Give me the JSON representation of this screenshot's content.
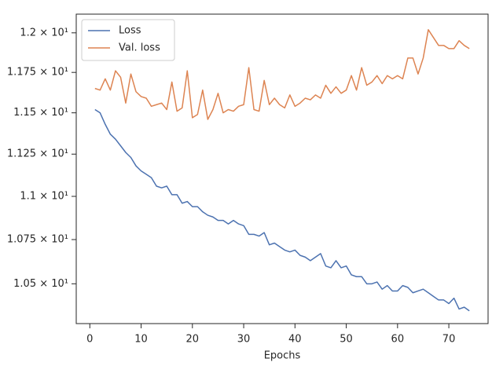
{
  "chart_data": {
    "type": "line",
    "xlabel": "Epochs",
    "x": [
      1,
      2,
      3,
      4,
      5,
      6,
      7,
      8,
      9,
      10,
      11,
      12,
      13,
      14,
      15,
      16,
      17,
      18,
      19,
      20,
      21,
      22,
      23,
      24,
      25,
      26,
      27,
      28,
      29,
      30,
      31,
      32,
      33,
      34,
      35,
      36,
      37,
      38,
      39,
      40,
      41,
      42,
      43,
      44,
      45,
      46,
      47,
      48,
      49,
      50,
      51,
      52,
      53,
      54,
      55,
      56,
      57,
      58,
      59,
      60,
      61,
      62,
      63,
      64,
      65,
      66,
      67,
      68,
      69,
      70,
      71,
      72,
      73,
      74
    ],
    "series": [
      {
        "name": "Loss",
        "color": "#4c72b0",
        "values": [
          11.52,
          11.5,
          11.43,
          11.37,
          11.34,
          11.3,
          11.26,
          11.23,
          11.18,
          11.15,
          11.13,
          11.11,
          11.06,
          11.05,
          11.06,
          11.01,
          11.01,
          10.96,
          10.97,
          10.94,
          10.94,
          10.91,
          10.89,
          10.88,
          10.86,
          10.86,
          10.84,
          10.86,
          10.84,
          10.83,
          10.78,
          10.78,
          10.77,
          10.79,
          10.72,
          10.73,
          10.71,
          10.69,
          10.68,
          10.69,
          10.66,
          10.65,
          10.63,
          10.65,
          10.67,
          10.6,
          10.59,
          10.63,
          10.59,
          10.6,
          10.55,
          10.54,
          10.54,
          10.5,
          10.5,
          10.51,
          10.47,
          10.49,
          10.46,
          10.46,
          10.49,
          10.48,
          10.45,
          10.46,
          10.47,
          10.45,
          10.43,
          10.41,
          10.41,
          10.39,
          10.42,
          10.36,
          10.37,
          10.35
        ]
      },
      {
        "name": "Val. loss",
        "color": "#dd8452",
        "values": [
          11.65,
          11.64,
          11.71,
          11.64,
          11.76,
          11.72,
          11.56,
          11.74,
          11.63,
          11.6,
          11.59,
          11.54,
          11.55,
          11.56,
          11.52,
          11.69,
          11.51,
          11.53,
          11.76,
          11.47,
          11.49,
          11.64,
          11.46,
          11.52,
          11.62,
          11.5,
          11.52,
          11.51,
          11.54,
          11.55,
          11.78,
          11.52,
          11.51,
          11.7,
          11.55,
          11.59,
          11.55,
          11.53,
          11.61,
          11.54,
          11.56,
          11.59,
          11.58,
          11.61,
          11.59,
          11.67,
          11.62,
          11.66,
          11.62,
          11.64,
          11.73,
          11.64,
          11.78,
          11.67,
          11.69,
          11.73,
          11.68,
          11.73,
          11.71,
          11.73,
          11.71,
          11.84,
          11.84,
          11.74,
          11.84,
          12.02,
          11.97,
          11.92,
          11.92,
          11.9,
          11.9,
          11.95,
          11.92,
          11.9
        ]
      }
    ],
    "xlim": [
      -2.65,
      77.65
    ],
    "xticks": [
      0,
      10,
      20,
      30,
      40,
      50,
      60,
      70
    ],
    "ylim": [
      10.28,
      12.12
    ],
    "ylog": true,
    "yticks": [
      {
        "value": 10.5,
        "label": "1.05 × 10¹"
      },
      {
        "value": 10.75,
        "label": "1.075 × 10¹"
      },
      {
        "value": 11,
        "label": "1.1 × 10¹"
      },
      {
        "value": 11.25,
        "label": "1.125 × 10¹"
      },
      {
        "value": 11.5,
        "label": "1.15 × 10¹"
      },
      {
        "value": 11.75,
        "label": "1.175 × 10¹"
      },
      {
        "value": 12,
        "label": "1.2 × 10¹"
      }
    ],
    "grid": false,
    "legend": "upper-left"
  }
}
